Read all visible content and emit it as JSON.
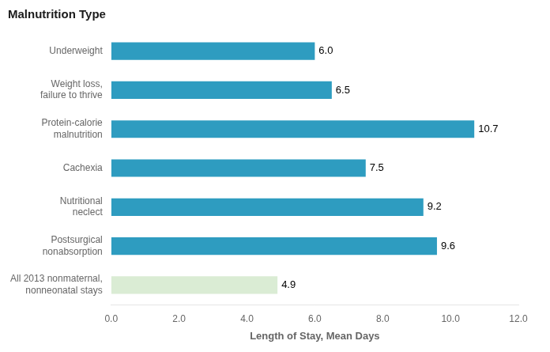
{
  "chart_data": {
    "type": "bar",
    "orientation": "horizontal",
    "title": "Malnutrition Type",
    "x_label": "Length of Stay, Mean Days",
    "categories": [
      "Underweight",
      "Weight loss,\nfailure to thrive",
      "Protein-calorie\nmalnutrition",
      "Cachexia",
      "Nutritional\nneclect",
      "Postsurgical\nnonabsorption",
      "All 2013 nonmaternal,\nnonneonatal stays"
    ],
    "values": [
      6.0,
      6.5,
      10.7,
      7.5,
      9.2,
      9.6,
      4.9
    ],
    "value_labels": [
      "6.0",
      "6.5",
      "10.7",
      "7.5",
      "9.2",
      "9.6",
      "4.9"
    ],
    "colors": [
      "#2e9cc0",
      "#2e9cc0",
      "#2e9cc0",
      "#2e9cc0",
      "#2e9cc0",
      "#2e9cc0",
      "#daecd4"
    ],
    "xlim": [
      0,
      12.0
    ],
    "xticks": [
      {
        "value": 0,
        "label": "0.0"
      },
      {
        "value": 2,
        "label": "2.0"
      },
      {
        "value": 4,
        "label": "4.0"
      },
      {
        "value": 6,
        "label": "6.0"
      },
      {
        "value": 8,
        "label": "8.0"
      },
      {
        "value": 10,
        "label": "10.0"
      },
      {
        "value": 12,
        "label": "12.0"
      }
    ],
    "grid": false,
    "data_labels": true
  }
}
